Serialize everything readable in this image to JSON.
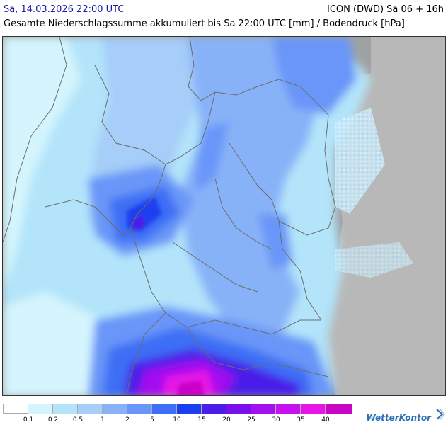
{
  "header": {
    "date": "Sa, 14.03.2026 22:00 UTC",
    "model": "ICON (DWD) Sa 06 + 16h",
    "subtitle": "Gesamte Niederschlagssumme akkumuliert bis Sa 22:00 UTC [mm] / Bodendruck [hPa]"
  },
  "legend": {
    "labels": [
      "0.1",
      "0.2",
      "0.5",
      "1",
      "2",
      "5",
      "10",
      "15",
      "20",
      "25",
      "30",
      "35",
      "40"
    ],
    "colors": [
      "#ffffff",
      "#d4f5fd",
      "#b3e4fa",
      "#a6cef8",
      "#88b2f8",
      "#6996f8",
      "#3e6ef5",
      "#1a3ff0",
      "#4a1de9",
      "#7810ec",
      "#a210ee",
      "#c512ee",
      "#e716e6",
      "#c906c6"
    ]
  },
  "brand": {
    "name": "WetterKontor"
  },
  "map_colors": {
    "sea": "#9fa2a4",
    "land_outside": "#b5b5b5",
    "border": "#6c6c6c"
  }
}
